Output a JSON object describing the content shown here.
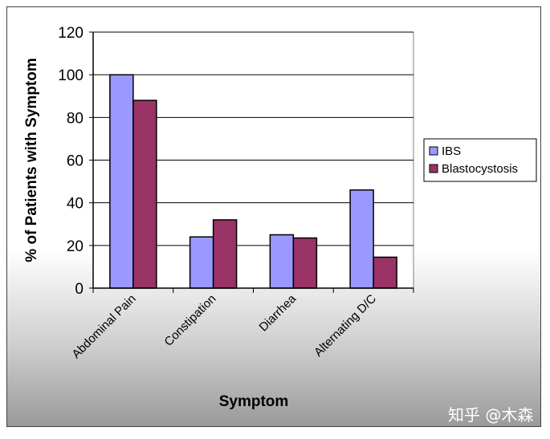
{
  "chart_data": {
    "type": "bar",
    "categories": [
      "Abdominal Pain",
      "Constipation",
      "Diarrhea",
      "Alternating D/C"
    ],
    "series": [
      {
        "name": "IBS",
        "values": [
          100,
          24,
          25,
          46
        ],
        "color": "#9999ff"
      },
      {
        "name": "Blastocystosis",
        "values": [
          88,
          32,
          23.5,
          14.5
        ],
        "color": "#993366"
      }
    ],
    "xlabel": "Symptom",
    "ylabel": "% of Patients with Symptom",
    "ylim": [
      0,
      120
    ],
    "yticks": [
      0,
      20,
      40,
      60,
      80,
      100,
      120
    ],
    "grid": true,
    "legend_position": "right"
  },
  "watermark": "知乎 @木森"
}
